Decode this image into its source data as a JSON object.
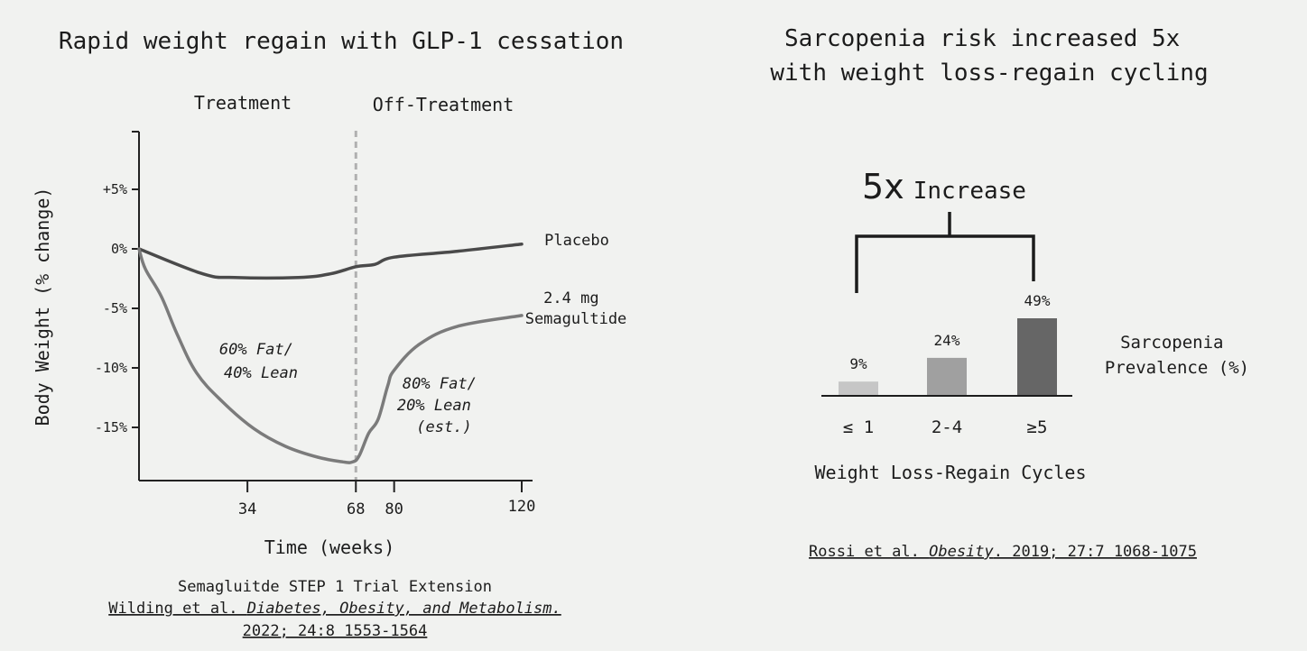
{
  "chart_data": [
    {
      "type": "line",
      "title": "Rapid weight regain with GLP-1 cessation",
      "xlabel": "Time (weeks)",
      "ylabel": "Body Weight (% change)",
      "xlim": [
        0,
        120
      ],
      "ylim": [
        -20,
        10
      ],
      "x_ticks": [
        {
          "value": 34,
          "label": "34"
        },
        {
          "value": 68,
          "label": "68"
        },
        {
          "value": 80,
          "label": "80"
        },
        {
          "value": 120,
          "label": "120"
        }
      ],
      "y_ticks": [
        {
          "value": 5,
          "label": "+5%"
        },
        {
          "value": 0,
          "label": "0%"
        },
        {
          "value": -5,
          "label": "-5%"
        },
        {
          "value": -10,
          "label": "-10%"
        },
        {
          "value": -15,
          "label": "-15%"
        }
      ],
      "phases": {
        "divider_x": 68,
        "treatment": "Treatment",
        "off_treatment": "Off-Treatment"
      },
      "series": [
        {
          "name": "Placebo",
          "color": "#4a4a4a",
          "points": [
            [
              0,
              0
            ],
            [
              20,
              -2.1
            ],
            [
              30,
              -2.4
            ],
            [
              50,
              -2.4
            ],
            [
              60,
              -2.1
            ],
            [
              68,
              -1.5
            ],
            [
              74,
              -1.3
            ],
            [
              80,
              -0.7
            ],
            [
              100,
              -0.2
            ],
            [
              120,
              0.4
            ]
          ]
        },
        {
          "name": "2.4 mg Semagultide",
          "label_lines": [
            "2.4 mg",
            "Semagultide"
          ],
          "color": "#7b7b7b",
          "points": [
            [
              0,
              0
            ],
            [
              2,
              -1.7
            ],
            [
              7,
              -4.0
            ],
            [
              12,
              -7.2
            ],
            [
              18,
              -10.4
            ],
            [
              26,
              -12.8
            ],
            [
              36,
              -15.1
            ],
            [
              46,
              -16.6
            ],
            [
              56,
              -17.5
            ],
            [
              64,
              -17.9
            ],
            [
              67,
              -17.9
            ],
            [
              69,
              -17.4
            ],
            [
              72,
              -15.5
            ],
            [
              75,
              -14.3
            ],
            [
              78,
              -11.5
            ],
            [
              80,
              -10.2
            ],
            [
              88,
              -8.0
            ],
            [
              100,
              -6.5
            ],
            [
              120,
              -5.6
            ]
          ]
        }
      ],
      "annotations": [
        {
          "lines": [
            "60% Fat/",
            "40% Lean"
          ]
        },
        {
          "lines": [
            "80% Fat/",
            "20% Lean",
            "(est.)"
          ]
        }
      ],
      "footnote": {
        "line1": "Semagluitde STEP 1 Trial Extension",
        "line2_plain": "Wilding et al. ",
        "line2_italic": "Diabetes, Obesity, and Metabolism.",
        "line3": "2022; 24:8 1553-1564"
      }
    },
    {
      "type": "bar",
      "title_lines": [
        "Sarcopenia risk increased 5x",
        "with weight loss-regain cycling"
      ],
      "xlabel": "Weight Loss-Regain Cycles",
      "ylabel_lines": [
        "Sarcopenia",
        "Prevalence (%)"
      ],
      "categories": [
        "≤ 1",
        "2-4",
        "≥5"
      ],
      "values": [
        9,
        24,
        49
      ],
      "value_labels": [
        "9%",
        "24%",
        "49%"
      ],
      "colors": [
        "#c6c6c6",
        "#a0a0a0",
        "#666666"
      ],
      "bracket": {
        "big": "5x",
        "text": "Increase"
      },
      "citation": {
        "plain1": "Rossi et al. ",
        "italic": "Obesity",
        "plain2": ". 2019; 27:7 1068-1075"
      }
    }
  ]
}
